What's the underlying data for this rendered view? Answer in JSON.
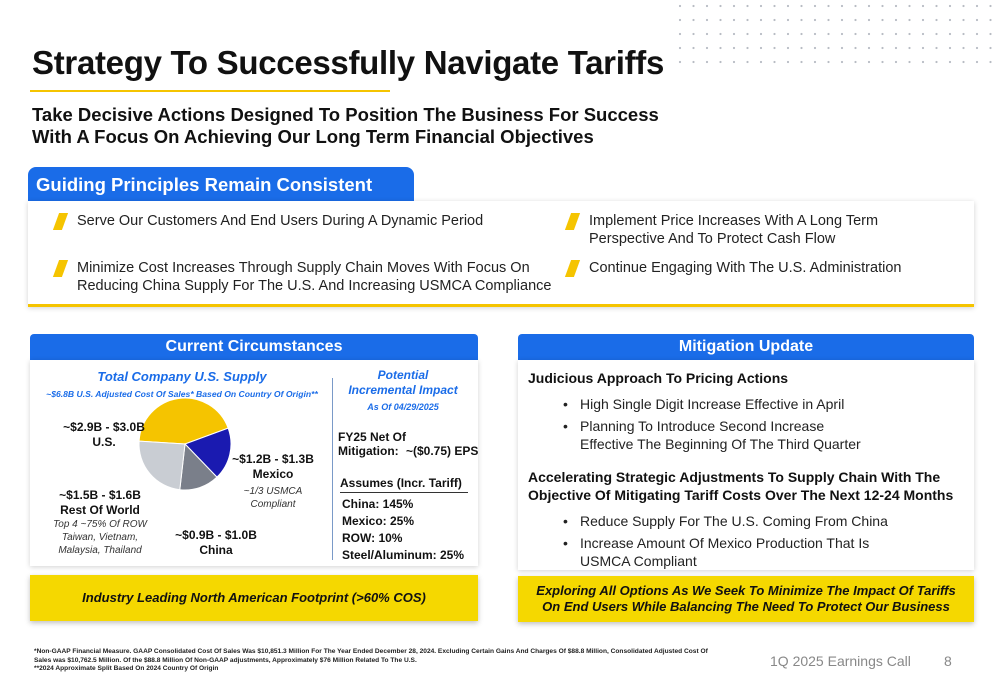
{
  "title": "Strategy To Successfully Navigate Tariffs",
  "subtitle_line1": "Take Decisive Actions Designed To Position The Business For Success",
  "subtitle_line2": "With A Focus On Achieving Our Long Term Financial Objectives",
  "guiding": {
    "header": "Guiding Principles Remain Consistent",
    "items": [
      {
        "line1": "Serve Our Customers And End Users During A Dynamic Period",
        "line2": ""
      },
      {
        "line1": "Minimize Cost Increases Through Supply Chain Moves With Focus On",
        "line2": "Reducing China Supply For The U.S. And Increasing USMCA Compliance"
      },
      {
        "line1": "Implement Price Increases With A Long Term",
        "line2": "Perspective And To Protect Cash Flow"
      },
      {
        "line1": "Continue Engaging With The U.S. Administration",
        "line2": ""
      }
    ]
  },
  "current": {
    "header": "Current Circumstances",
    "supply_title": "Total Company U.S. Supply",
    "supply_sub": "~$6.8B U.S. Adjusted Cost Of Sales* Based On Country Of Origin**",
    "pie": [
      {
        "label": "U.S.",
        "value": "~$2.9B - $3.0B",
        "share": 43.4,
        "color": "#f5c400",
        "note": ""
      },
      {
        "label": "Mexico",
        "value": "~$1.2B - $1.3B",
        "share": 18.4,
        "color": "#1a1ab0",
        "note": "~1/3 USMCA Compliant"
      },
      {
        "label": "China",
        "value": "~$0.9B - $1.0B",
        "share": 14.0,
        "color": "#7a7f8a",
        "note": ""
      },
      {
        "label": "Rest Of World",
        "value": "~$1.5B - $1.6B",
        "share": 24.2,
        "color": "#c9cdd3",
        "note": "Top 4 ~75% Of ROW Taiwan, Vietnam, Malaysia, Thailand"
      }
    ],
    "mexico_note1": "~1/3 USMCA",
    "mexico_note2": "Compliant",
    "row_note1": "Top 4 ~75% Of ROW",
    "row_note2": "Taiwan, Vietnam,",
    "row_note3": "Malaysia, Thailand",
    "impact_title1": "Potential",
    "impact_title2": "Incremental Impact",
    "impact_asof": "As Of 04/29/2025",
    "fy25_label1": "FY25 Net Of",
    "fy25_label2": "Mitigation:",
    "fy25_value": "~($0.75) EPS",
    "assumes_title": "Assumes (Incr. Tariff)",
    "assumes": [
      "China: 145%",
      "Mexico: 25%",
      "ROW: 10%",
      "Steel/Aluminum: 25%"
    ],
    "footer": "Industry Leading North American Footprint (>60% COS)"
  },
  "mitigation": {
    "header": "Mitigation Update",
    "head1": "Judicious Approach To Pricing Actions",
    "bullets1": [
      {
        "line1": "High Single Digit Increase Effective in April",
        "line2": ""
      },
      {
        "line1": "Planning To Introduce Second Increase",
        "line2": "Effective The Beginning Of The Third Quarter"
      }
    ],
    "head2_line1": "Accelerating Strategic Adjustments To Supply Chain With The",
    "head2_line2": "Objective Of Mitigating Tariff Costs Over The Next 12-24 Months",
    "bullets2": [
      {
        "line1": "Reduce Supply For The U.S. Coming From China",
        "line2": ""
      },
      {
        "line1": "Increase Amount Of Mexico Production That Is",
        "line2": "USMCA Compliant"
      }
    ],
    "footer_line1": "Exploring All Options As We Seek To Minimize The Impact Of Tariffs",
    "footer_line2": "On End Users While Balancing The Need To Protect Our Business"
  },
  "footnote1": "*Non-GAAP Financial Measure. GAAP Consolidated Cost Of Sales Was $10,851.3 Million For The Year Ended December 28, 2024. Excluding Certain Gains And Charges Of $88.8 Million, Consolidated Adjusted Cost Of",
  "footnote2": "Sales was $10,762.5 Million. Of the $88.8 Million Of Non-GAAP adjustments, Approximately $76 Million Related To The U.S.",
  "footnote3": "**2024 Approximate Split Based On 2024 Country Of Origin",
  "call_label": "1Q 2025 Earnings Call",
  "page_number": "8"
}
